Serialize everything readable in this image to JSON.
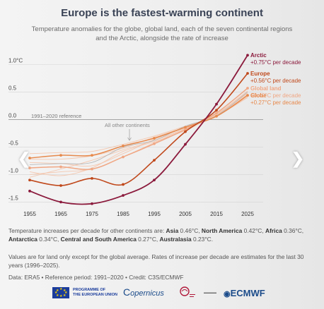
{
  "header": {
    "title": "Europe is the fastest-warming continent",
    "subtitle_line1": "Temperature anomalies for the globe, global land, each of the seven continental regions",
    "subtitle_line2": "and the Arctic, alongside the rate of increase"
  },
  "chart_data": {
    "type": "line",
    "x_ticks": [
      1955,
      1965,
      1975,
      1985,
      1995,
      2005,
      2015,
      2025
    ],
    "y_ticks": [
      {
        "value": 1.0,
        "label": "1.0°C"
      },
      {
        "value": 0.5,
        "label": "0.5"
      },
      {
        "value": 0.0,
        "label": "0.0"
      },
      {
        "value": -0.5,
        "label": "-0.5"
      },
      {
        "value": -1.0,
        "label": "-1.0"
      },
      {
        "value": -1.5,
        "label": "-1.5"
      }
    ],
    "ylim": [
      -1.7,
      1.25
    ],
    "xlim": [
      1951,
      2032
    ],
    "reference_label": "1991–2020 reference",
    "other_label": "All other continents",
    "series": [
      {
        "name": "Arctic",
        "rate": "+0.75°C per decade",
        "color": "#8b1a3c",
        "width": 1.8,
        "markers": true,
        "x": [
          1955,
          1965,
          1975,
          1985,
          1995,
          2005,
          2015,
          2025
        ],
        "y": [
          -1.3,
          -1.5,
          -1.53,
          -1.38,
          -1.1,
          -0.45,
          0.28,
          1.17
        ]
      },
      {
        "name": "Europe",
        "rate": "+0.56°C per decade",
        "color": "#c0491c",
        "width": 1.6,
        "markers": true,
        "x": [
          1955,
          1965,
          1975,
          1985,
          1995,
          2005,
          2015,
          2025
        ],
        "y": [
          -1.1,
          -1.2,
          -1.07,
          -1.18,
          -0.74,
          -0.22,
          0.17,
          0.84
        ]
      },
      {
        "name": "Global land",
        "rate": "+0.40°C per decade",
        "color": "#f0a784",
        "width": 1.5,
        "markers": true,
        "x": [
          1955,
          1965,
          1975,
          1985,
          1995,
          2005,
          2015,
          2025
        ],
        "y": [
          -0.88,
          -0.86,
          -0.9,
          -0.68,
          -0.44,
          -0.18,
          0.12,
          0.57
        ]
      },
      {
        "name": "Globe",
        "rate": "+0.27°C per decade",
        "color": "#e7894c",
        "width": 1.5,
        "markers": true,
        "x": [
          1955,
          1965,
          1975,
          1985,
          1995,
          2005,
          2015,
          2025
        ],
        "y": [
          -0.7,
          -0.65,
          -0.65,
          -0.48,
          -0.34,
          -0.14,
          0.06,
          0.44
        ]
      }
    ],
    "other_continents": {
      "color": "#f4c3a8",
      "lines": [
        {
          "x": [
            1955,
            1965,
            1975,
            1985,
            1995,
            2005,
            2015,
            2025
          ],
          "y": [
            -1.0,
            -0.95,
            -0.9,
            -0.68,
            -0.42,
            -0.16,
            0.1,
            0.52
          ]
        },
        {
          "x": [
            1955,
            1965,
            1975,
            1985,
            1995,
            2005,
            2015,
            2025
          ],
          "y": [
            -0.78,
            -0.8,
            -0.84,
            -0.62,
            -0.36,
            -0.14,
            0.08,
            0.46
          ]
        },
        {
          "x": [
            1955,
            1965,
            1975,
            1985,
            1995,
            2005,
            2015,
            2025
          ],
          "y": [
            -0.95,
            -1.02,
            -0.88,
            -0.58,
            -0.4,
            -0.2,
            0.1,
            0.5
          ]
        },
        {
          "x": [
            1955,
            1965,
            1975,
            1985,
            1995,
            2005,
            2015,
            2025
          ],
          "y": [
            -0.62,
            -0.6,
            -0.58,
            -0.45,
            -0.3,
            -0.12,
            0.07,
            0.4
          ]
        },
        {
          "x": [
            1955,
            1965,
            1975,
            1985,
            1995,
            2005,
            2015,
            2025
          ],
          "y": [
            -0.72,
            -0.72,
            -0.66,
            -0.52,
            -0.32,
            -0.14,
            0.06,
            0.41
          ]
        },
        {
          "x": [
            1955,
            1965,
            1975,
            1985,
            1995,
            2005,
            2015,
            2025
          ],
          "y": [
            -1.05,
            -0.9,
            -0.74,
            -0.55,
            -0.38,
            -0.16,
            0.09,
            0.48
          ]
        }
      ]
    },
    "reference_line": {
      "color": "#b0b0b0",
      "x": [
        1955,
        1965,
        1975,
        1985,
        1995,
        2005,
        2015,
        2025
      ],
      "y": [
        -0.82,
        -0.8,
        -0.78,
        -0.5,
        -0.38,
        -0.12,
        0.07,
        0.5
      ]
    }
  },
  "navigation": {
    "prev_glyph": "❮",
    "next_glyph": "❯"
  },
  "notes": {
    "continents_prefix": "Temperature increases per decade for other continents are: ",
    "continents": [
      {
        "name": "Asia",
        "value": " 0.46°C, "
      },
      {
        "name": "North America",
        "value": " 0.42°C, "
      },
      {
        "name": "Africa",
        "value": " 0.36°C, "
      },
      {
        "name": "Antarctica",
        "value": " 0.34°C, "
      },
      {
        "name": "Central and South America",
        "value": " 0.27°C, "
      },
      {
        "name": "Australasia",
        "value": " 0.23°C."
      }
    ],
    "values_note": "Values are for land only except for the global average. Rates of increase per decade are estimates for the last 30 years (1996–2025).",
    "credit": "Data: ERA5 • Reference period: 1991–2020 • Credit: C3S/ECMWF"
  },
  "logos": {
    "eu_line1": "PROGRAMME OF",
    "eu_line2": "THE EUROPEAN UNION",
    "copernicus": "opernicus",
    "ecmwf": "ECMWF"
  }
}
